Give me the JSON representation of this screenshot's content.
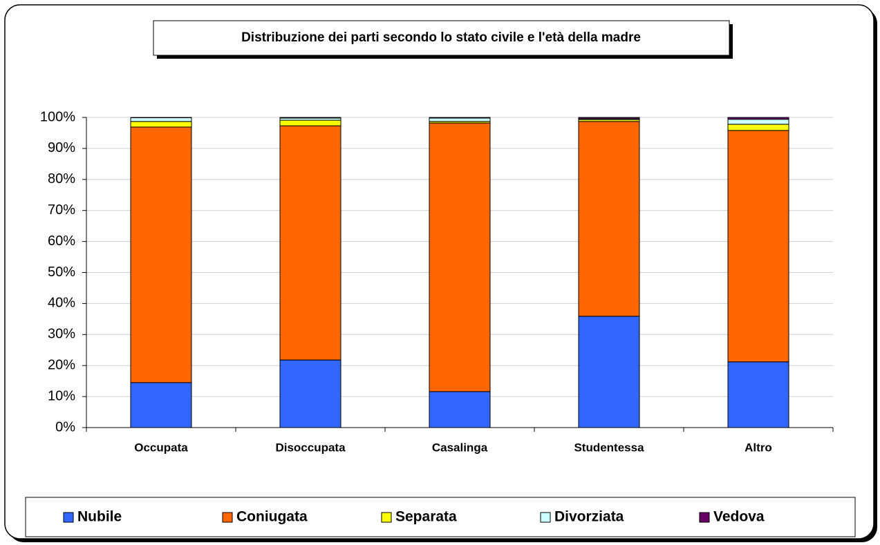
{
  "chart_data": {
    "type": "stacked_bar",
    "title": "Distribuzione dei parti secondo lo stato civile e l'età della madre",
    "categories": [
      "Occupata",
      "Disoccupata",
      "Casalinga",
      "Studentessa",
      "Altro"
    ],
    "series": [
      {
        "name": "Nubile",
        "color": "#3366ff",
        "values": [
          14.5,
          21.8,
          11.6,
          35.9,
          21.2
        ]
      },
      {
        "name": "Coniugata",
        "color": "#ff6600",
        "values": [
          82.4,
          75.5,
          86.6,
          62.8,
          74.6
        ]
      },
      {
        "name": "Separata",
        "color": "#ffff00",
        "values": [
          1.8,
          1.8,
          0.5,
          0.6,
          2.0
        ]
      },
      {
        "name": "Divorziata",
        "color": "#ccffff",
        "values": [
          1.2,
          0.7,
          1.1,
          0.3,
          1.6
        ]
      },
      {
        "name": "Vedova",
        "color": "#660066",
        "values": [
          0.1,
          0.2,
          0.2,
          0.4,
          0.6
        ]
      }
    ],
    "ylim": [
      0,
      100
    ],
    "yticks": [
      {
        "value": 0,
        "label": "0%"
      },
      {
        "value": 10,
        "label": "10%"
      },
      {
        "value": 20,
        "label": "20%"
      },
      {
        "value": 30,
        "label": "30%"
      },
      {
        "value": 40,
        "label": "40%"
      },
      {
        "value": 50,
        "label": "50%"
      },
      {
        "value": 60,
        "label": "60%"
      },
      {
        "value": 70,
        "label": "70%"
      },
      {
        "value": 80,
        "label": "80%"
      },
      {
        "value": 90,
        "label": "90%"
      },
      {
        "value": 100,
        "label": "100%"
      }
    ],
    "grid": true,
    "legend": "bottom"
  }
}
